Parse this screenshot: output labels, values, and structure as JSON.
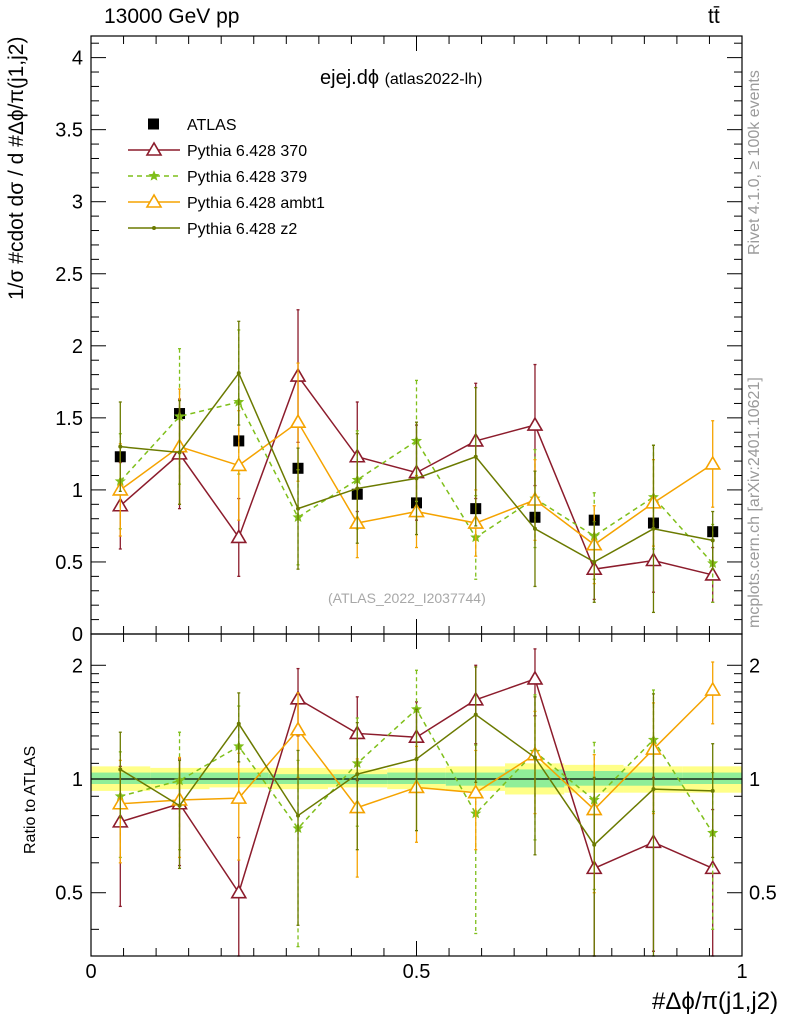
{
  "header": {
    "left": "13000 GeV pp",
    "right": "tt̄"
  },
  "side_labels": {
    "rivet": "Rivet 4.1.0, ≥ 100k events",
    "mcplots": "mcplots.cern.ch [arXiv:2401.10621]"
  },
  "watermark": "(ATLAS_2022_I2037744)",
  "chart_data": [
    {
      "type": "scatter",
      "title": "ejej.dϕ",
      "subtitle": "(atlas2022-lh)",
      "ylabel": "1/σ #cdot dσ / d #Δϕ/π(j1,j2)",
      "xlabel": "#Δϕ/π(j1,j2)",
      "xlim": [
        0,
        1
      ],
      "ylim": [
        0,
        4.15
      ],
      "yticks": [
        0,
        0.5,
        1,
        1.5,
        2,
        2.5,
        3,
        3.5,
        4
      ],
      "ytick_labels": [
        "0",
        "0.5",
        "1",
        "1.5",
        "2",
        "2.5",
        "3",
        "3.5",
        "4"
      ],
      "legend_position": "top-left",
      "x": [
        0.045,
        0.136,
        0.227,
        0.318,
        0.409,
        0.5,
        0.591,
        0.682,
        0.773,
        0.864,
        0.955
      ],
      "series": [
        {
          "name": "ATLAS",
          "color": "#000000",
          "style": "data",
          "values": [
            1.23,
            1.53,
            1.34,
            1.15,
            0.97,
            0.91,
            0.87,
            0.81,
            0.79,
            0.77,
            0.71
          ]
        },
        {
          "name": "Pythia 6.428 370",
          "color": "#8c1c2c",
          "style": "solid",
          "marker": "triangle-open",
          "values": [
            0.89,
            1.25,
            0.67,
            1.79,
            1.23,
            1.12,
            1.34,
            1.45,
            0.45,
            0.51,
            0.41
          ],
          "errors": [
            0.3,
            0.38,
            0.27,
            0.46,
            0.38,
            0.33,
            0.4,
            0.42,
            0.21,
            0.22,
            0.19
          ]
        },
        {
          "name": "Pythia 6.428 379",
          "color": "#7fbf1a",
          "style": "dashed",
          "marker": "star",
          "values": [
            1.06,
            1.51,
            1.61,
            0.81,
            1.07,
            1.34,
            0.67,
            0.94,
            0.68,
            0.95,
            0.49
          ],
          "errors": [
            0.33,
            0.47,
            0.5,
            0.33,
            0.34,
            0.42,
            0.29,
            0.34,
            0.3,
            0.36,
            0.27
          ]
        },
        {
          "name": "Pythia 6.428 ambt1",
          "color": "#f5a300",
          "style": "solid",
          "marker": "triangle-open",
          "values": [
            1.0,
            1.3,
            1.17,
            1.47,
            0.77,
            0.85,
            0.77,
            0.93,
            0.62,
            0.91,
            1.18
          ],
          "errors": [
            0.32,
            0.4,
            0.38,
            0.41,
            0.24,
            0.25,
            0.23,
            0.28,
            0.27,
            0.3,
            0.3
          ]
        },
        {
          "name": "Pythia 6.428 z2",
          "color": "#6b7a00",
          "style": "solid",
          "marker": "dot",
          "values": [
            1.3,
            1.26,
            1.81,
            0.87,
            1.01,
            1.08,
            1.23,
            0.73,
            0.5,
            0.73,
            0.65
          ],
          "errors": [
            0.31,
            0.36,
            0.36,
            0.42,
            0.38,
            0.39,
            0.48,
            0.4,
            0.28,
            0.58,
            0.2
          ]
        }
      ]
    },
    {
      "type": "scatter",
      "title": "Ratio to ATLAS",
      "ylabel": "Ratio to ATLAS",
      "xlabel": "#Δϕ/π(j1,j2)",
      "xlim": [
        0,
        1
      ],
      "ylim": [
        0.34,
        2.42
      ],
      "yticks": [
        0.5,
        1,
        2
      ],
      "ytick_labels": [
        "0.5",
        "1",
        "2"
      ],
      "xticks": [
        0,
        0.5,
        1
      ],
      "xtick_labels": [
        "0",
        "0.5",
        "1"
      ],
      "band_stat": [
        {
          "x0": 0.0,
          "x1": 0.091,
          "lo": 0.97,
          "hi": 1.04
        },
        {
          "x0": 0.091,
          "x1": 0.182,
          "lo": 0.97,
          "hi": 1.04
        },
        {
          "x0": 0.182,
          "x1": 0.273,
          "lo": 0.97,
          "hi": 1.04
        },
        {
          "x0": 0.273,
          "x1": 0.364,
          "lo": 0.97,
          "hi": 1.03
        },
        {
          "x0": 0.364,
          "x1": 0.455,
          "lo": 0.97,
          "hi": 1.03
        },
        {
          "x0": 0.455,
          "x1": 0.545,
          "lo": 0.97,
          "hi": 1.04
        },
        {
          "x0": 0.545,
          "x1": 0.636,
          "lo": 0.96,
          "hi": 1.04
        },
        {
          "x0": 0.636,
          "x1": 0.727,
          "lo": 0.95,
          "hi": 1.06
        },
        {
          "x0": 0.727,
          "x1": 0.818,
          "lo": 0.96,
          "hi": 1.05
        },
        {
          "x0": 0.818,
          "x1": 0.909,
          "lo": 0.96,
          "hi": 1.04
        },
        {
          "x0": 0.909,
          "x1": 1.0,
          "lo": 0.97,
          "hi": 1.04
        }
      ],
      "band_total": [
        {
          "x0": 0.0,
          "x1": 0.091,
          "lo": 0.93,
          "hi": 1.08
        },
        {
          "x0": 0.091,
          "x1": 0.182,
          "lo": 0.94,
          "hi": 1.07
        },
        {
          "x0": 0.182,
          "x1": 0.273,
          "lo": 0.95,
          "hi": 1.07
        },
        {
          "x0": 0.273,
          "x1": 0.364,
          "lo": 0.94,
          "hi": 1.07
        },
        {
          "x0": 0.364,
          "x1": 0.455,
          "lo": 0.95,
          "hi": 1.06
        },
        {
          "x0": 0.455,
          "x1": 0.545,
          "lo": 0.94,
          "hi": 1.07
        },
        {
          "x0": 0.545,
          "x1": 0.636,
          "lo": 0.93,
          "hi": 1.08
        },
        {
          "x0": 0.636,
          "x1": 0.727,
          "lo": 0.91,
          "hi": 1.1
        },
        {
          "x0": 0.727,
          "x1": 0.818,
          "lo": 0.92,
          "hi": 1.09
        },
        {
          "x0": 0.818,
          "x1": 0.909,
          "lo": 0.92,
          "hi": 1.08
        },
        {
          "x0": 0.909,
          "x1": 1.0,
          "lo": 0.92,
          "hi": 1.08
        }
      ],
      "series": [
        {
          "name": "Pythia 6.428 370",
          "color": "#8c1c2c",
          "style": "solid",
          "marker": "triangle-open",
          "values": [
            0.77,
            0.86,
            0.5,
            1.63,
            1.32,
            1.29,
            1.62,
            1.84,
            0.58,
            0.68,
            0.58
          ],
          "errors": [
            0.31,
            0.27,
            0.2,
            0.33,
            0.33,
            0.31,
            0.38,
            0.37,
            0.3,
            0.33,
            0.25
          ]
        },
        {
          "name": "Pythia 6.428 379",
          "color": "#7fbf1a",
          "style": "dashed",
          "marker": "star",
          "values": [
            0.9,
            0.99,
            1.22,
            0.74,
            1.1,
            1.53,
            0.81,
            1.18,
            0.88,
            1.27,
            0.72
          ],
          "errors": [
            0.28,
            0.34,
            0.34,
            0.38,
            0.35,
            0.41,
            0.42,
            0.49,
            0.37,
            0.45,
            0.32
          ]
        },
        {
          "name": "Pythia 6.428 ambt1",
          "color": "#f5a300",
          "style": "solid",
          "marker": "triangle-open",
          "values": [
            0.86,
            0.88,
            0.89,
            1.35,
            0.84,
            0.95,
            0.92,
            1.16,
            0.83,
            1.2,
            1.72
          ],
          "errors": [
            0.26,
            0.26,
            0.28,
            0.34,
            0.29,
            0.27,
            0.27,
            0.35,
            0.33,
            0.39,
            0.32
          ]
        },
        {
          "name": "Pythia 6.428 z2",
          "color": "#6b7a00",
          "style": "solid",
          "marker": "dot",
          "values": [
            1.06,
            0.85,
            1.4,
            0.8,
            1.03,
            1.13,
            1.48,
            1.14,
            0.67,
            0.94,
            0.93
          ],
          "errors": [
            0.27,
            0.27,
            0.29,
            0.39,
            0.38,
            0.4,
            0.5,
            0.51,
            0.34,
            0.74,
            0.31
          ]
        }
      ]
    }
  ]
}
